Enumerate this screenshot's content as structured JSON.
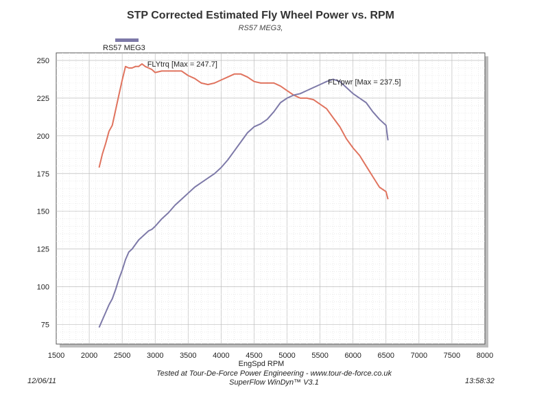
{
  "header": {
    "title": "STP Corrected Estimated Fly Wheel Power vs. RPM",
    "subtitle": "RS57 MEG3,"
  },
  "legend": {
    "entries": [
      {
        "label": "RS57 MEG3",
        "color": "#7d79a8"
      }
    ],
    "position": "top-left"
  },
  "footer": {
    "date": "12/06/11",
    "time": "13:58:32",
    "line1": "Tested at Tour-De-Force Power Engineering - www.tour-de-force.co.uk",
    "line2": "SuperFlow WinDyn™ V3.1"
  },
  "chart_data": {
    "type": "line",
    "title": "STP Corrected Estimated Fly Wheel Power vs. RPM",
    "subtitle": "RS57 MEG3,",
    "xlabel": "EngSpd RPM",
    "ylabel": "",
    "xlim": [
      1500,
      8000
    ],
    "ylim": [
      62,
      255
    ],
    "xticks": [
      1500,
      2000,
      2500,
      3000,
      3500,
      4000,
      4500,
      5000,
      5500,
      6000,
      6500,
      7000,
      7500,
      8000
    ],
    "yticks": [
      75,
      100,
      125,
      150,
      175,
      200,
      225,
      250
    ],
    "grid": true,
    "colors": {
      "torque": "#e0735e",
      "power": "#7d79a8",
      "grid": "#cfcfcf"
    },
    "series": [
      {
        "name": "FLYtrq",
        "label": "FLYtrq [Max = 247.7]",
        "x": [
          2150,
          2200,
          2250,
          2300,
          2350,
          2400,
          2450,
          2500,
          2550,
          2600,
          2650,
          2700,
          2750,
          2800,
          2850,
          2900,
          2950,
          3000,
          3100,
          3200,
          3300,
          3400,
          3500,
          3600,
          3700,
          3800,
          3900,
          4000,
          4100,
          4200,
          4300,
          4400,
          4500,
          4600,
          4700,
          4800,
          4900,
          5000,
          5100,
          5200,
          5300,
          5400,
          5500,
          5600,
          5700,
          5800,
          5900,
          6000,
          6100,
          6200,
          6300,
          6400,
          6500,
          6530
        ],
        "values": [
          179,
          188,
          195,
          203,
          207,
          217,
          227,
          237,
          246,
          245,
          245,
          246,
          246,
          247.7,
          246,
          245,
          244,
          242,
          243,
          243,
          243,
          243,
          240,
          238,
          235,
          234,
          235,
          237,
          239,
          241,
          241,
          239,
          236,
          235,
          235,
          235,
          233,
          230,
          227,
          225,
          225,
          224,
          221,
          218,
          212,
          206,
          198,
          192,
          187,
          180,
          173,
          166,
          163,
          158
        ]
      },
      {
        "name": "FLYpwr",
        "label": "FLYpwr [Max = 237.5]",
        "x": [
          2150,
          2200,
          2250,
          2300,
          2350,
          2400,
          2450,
          2500,
          2550,
          2600,
          2650,
          2700,
          2750,
          2800,
          2850,
          2900,
          2950,
          3000,
          3100,
          3200,
          3300,
          3400,
          3500,
          3600,
          3700,
          3800,
          3900,
          4000,
          4100,
          4200,
          4300,
          4400,
          4500,
          4600,
          4700,
          4800,
          4900,
          5000,
          5100,
          5200,
          5300,
          5400,
          5500,
          5600,
          5700,
          5800,
          5900,
          6000,
          6100,
          6200,
          6300,
          6400,
          6500,
          6530
        ],
        "values": [
          73,
          78,
          83,
          88,
          92,
          98,
          105,
          111,
          118,
          123,
          125,
          128,
          131,
          133,
          135,
          137,
          138,
          140,
          145,
          149,
          154,
          158,
          162,
          166,
          169,
          172,
          175,
          179,
          184,
          190,
          196,
          202,
          206,
          208,
          211,
          216,
          222,
          225,
          227,
          228,
          230,
          232,
          234,
          236,
          237.5,
          236,
          232,
          228,
          225,
          222,
          216,
          211,
          207,
          197
        ]
      }
    ],
    "annotations": [
      {
        "text": "FLYtrq [Max = 247.7]",
        "x": 2880,
        "y": 246,
        "series": "FLYtrq"
      },
      {
        "text": "FLYpwr [Max = 237.5]",
        "x": 5620,
        "y": 234,
        "series": "FLYpwr"
      }
    ]
  }
}
